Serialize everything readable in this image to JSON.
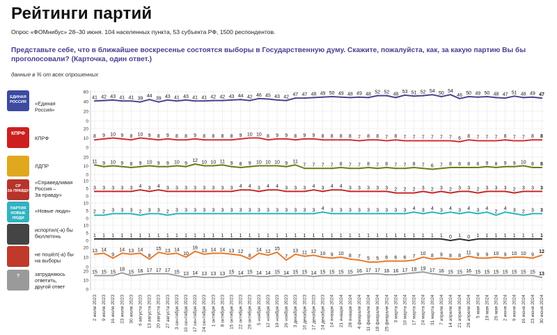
{
  "page": {
    "title": "Рейтинги партий",
    "subtitle": "Опрос «ФОМнибус» 28–30 июня. 104 населенных пункта, 53 субъекта РФ, 1500 респондентов.",
    "question": "Представьте себе, что в ближайшее воскресенье состоятся выборы в Государственную думу. Скажите, пожалуйста, как, за какую партию Вы бы проголосовали? (Карточка, один ответ.)",
    "note": "данные в % от всех опрошенных"
  },
  "chart_data": {
    "type": "line",
    "y_ticks": [
      [
        "60",
        "40",
        "20",
        "0"
      ],
      [
        "20",
        "10",
        "0"
      ],
      [
        "20",
        "10",
        "0"
      ],
      [
        "10",
        "5",
        "0"
      ],
      [
        "10",
        "5",
        "0"
      ],
      [
        "10",
        "5",
        "0"
      ],
      [
        "20",
        "10",
        "0"
      ],
      [
        "20",
        "10",
        "0"
      ]
    ],
    "x": [
      "2 июля 2023",
      "9 июля 2023",
      "16 июля 2023",
      "23 июля 2023",
      "30 июля 2023",
      "6 августа 2023",
      "13 августа 2023",
      "20 августа 2023",
      "27 августа 2023",
      "3 сентября 2023",
      "10 сентября 2023",
      "17 сентября 2023",
      "24 сентября 2023",
      "1 октября 2023",
      "8 октября 2023",
      "15 октября 2023",
      "22 октября 2023",
      "29 октября 2023",
      "5 ноября 2023",
      "12 ноября 2023",
      "19 ноября 2023",
      "26 ноября 2023",
      "3 декабря 2023",
      "10 декабря 2023",
      "17 декабря 2023",
      "24 декабря 2023",
      "14 января 2024",
      "21 января 2024",
      "28 января 2024",
      "4 февраля 2024",
      "11 февраля 2024",
      "18 февраля 2024",
      "25 февраля 2024",
      "3 марта 2024",
      "10 марта 2024",
      "17 марта 2024",
      "24 марта 2024",
      "31 марта 2024",
      "7 апреля 2024",
      "14 апреля 2024",
      "21 апреля 2024",
      "28 апреля 2024",
      "5 мая 2024",
      "19 мая 2024",
      "26 мая 2024",
      "2 июня 2024",
      "9 июня 2024",
      "16 июня 2024",
      "23 июня 2024",
      "30 июня 2024"
    ],
    "series": [
      {
        "name": "«Единая Россия»",
        "color": "#4b4490",
        "ymax": 60,
        "values": [
          41,
          42,
          43,
          41,
          41,
          39,
          44,
          39,
          43,
          41,
          43,
          41,
          41,
          42,
          42,
          43,
          44,
          42,
          46,
          45,
          43,
          42,
          47,
          47,
          48,
          49,
          50,
          49,
          48,
          49,
          48,
          52,
          52,
          48,
          53,
          51,
          52,
          54,
          50,
          54,
          46,
          50,
          49,
          50,
          48,
          47,
          51,
          48,
          49,
          47
        ]
      },
      {
        "name": "КПРФ",
        "color": "#d32f2f",
        "ymax": 20,
        "values": [
          8,
          9,
          10,
          9,
          8,
          10,
          9,
          8,
          9,
          8,
          8,
          9,
          8,
          8,
          8,
          8,
          9,
          10,
          10,
          8,
          9,
          9,
          8,
          9,
          9,
          8,
          8,
          8,
          8,
          7,
          8,
          8,
          7,
          8,
          7,
          7,
          7,
          7,
          7,
          7,
          6,
          8,
          7,
          7,
          7,
          8,
          7,
          7,
          8,
          8
        ]
      },
      {
        "name": "ЛДПР",
        "color": "#6b7d16",
        "ymax": 20,
        "values": [
          11,
          9,
          10,
          9,
          8,
          9,
          10,
          9,
          9,
          10,
          9,
          12,
          10,
          10,
          11,
          9,
          8,
          9,
          10,
          10,
          10,
          9,
          11,
          7,
          7,
          7,
          7,
          8,
          7,
          7,
          8,
          7,
          8,
          7,
          7,
          8,
          7,
          6,
          7,
          8,
          8,
          8,
          8,
          9,
          8,
          9,
          9,
          10,
          8,
          8
        ]
      },
      {
        "name": "«Справедливая Россия – За правду»",
        "color": "#c62828",
        "ymax": 10,
        "values": [
          3,
          3,
          3,
          3,
          3,
          4,
          3,
          4,
          3,
          3,
          3,
          3,
          3,
          3,
          3,
          3,
          4,
          4,
          3,
          4,
          4,
          3,
          3,
          3,
          4,
          3,
          4,
          4,
          3,
          3,
          3,
          3,
          3,
          2,
          2,
          2,
          3,
          2,
          3,
          2,
          3,
          3,
          2,
          3,
          3,
          3,
          2,
          3,
          3,
          3
        ]
      },
      {
        "name": "«Новые люди»",
        "color": "#2bb3c0",
        "ymax": 10,
        "values": [
          2,
          2,
          3,
          3,
          3,
          2,
          3,
          3,
          2,
          3,
          3,
          3,
          3,
          3,
          3,
          3,
          3,
          3,
          3,
          3,
          3,
          3,
          3,
          3,
          3,
          4,
          3,
          3,
          3,
          3,
          3,
          3,
          3,
          3,
          3,
          4,
          3,
          4,
          3,
          4,
          3,
          4,
          3,
          4,
          2,
          4,
          3,
          2,
          3,
          3
        ]
      },
      {
        "name": "испортил(-а) бы бюллетень",
        "color": "#2b2b2b",
        "ymax": 10,
        "values": [
          1,
          1,
          1,
          1,
          1,
          1,
          1,
          1,
          1,
          1,
          1,
          1,
          1,
          1,
          1,
          1,
          1,
          1,
          1,
          1,
          1,
          1,
          1,
          1,
          1,
          1,
          1,
          1,
          1,
          1,
          1,
          1,
          1,
          1,
          1,
          1,
          1,
          1,
          1,
          0,
          1,
          0,
          1,
          1,
          1,
          1,
          1,
          1,
          1,
          1
        ]
      },
      {
        "name": "не пошёл(-а) бы на выборы",
        "color": "#e87a2a",
        "ymax": 20,
        "values": [
          13,
          14,
          9,
          14,
          13,
          14,
          8,
          15,
          13,
          14,
          10,
          16,
          13,
          14,
          14,
          13,
          12,
          8,
          14,
          12,
          15,
          7,
          13,
          11,
          12,
          10,
          9,
          10,
          8,
          7,
          5,
          5,
          6,
          6,
          6,
          7,
          10,
          8,
          9,
          8,
          8,
          11,
          9,
          9,
          10,
          9,
          10,
          10,
          9,
          12
        ]
      },
      {
        "name": "затрудняюсь ответить, другой ответ",
        "color": "#9e9e9e",
        "ymax": 20,
        "values": [
          15,
          15,
          15,
          18,
          15,
          16,
          17,
          17,
          17,
          15,
          13,
          14,
          13,
          13,
          13,
          15,
          14,
          15,
          14,
          14,
          15,
          14,
          15,
          15,
          14,
          15,
          15,
          15,
          15,
          16,
          17,
          17,
          16,
          16,
          17,
          18,
          19,
          17,
          16,
          15,
          15,
          16,
          15,
          15,
          15,
          15,
          15,
          15,
          15,
          13
        ]
      }
    ],
    "labels": {
      "row_1": [
        "«Единая",
        "Россия»"
      ],
      "row_2": [
        "КПРФ"
      ],
      "row_3": [
        "ЛДПР"
      ],
      "row_4": [
        "«Справедливая",
        "Россия –",
        "За правду»"
      ],
      "row_5": [
        "«Новые люди»"
      ],
      "row_6": [
        "испортил(-а) бы",
        "бюллетень"
      ],
      "row_7": [
        "не пошёл(-а) бы",
        "на выборы"
      ],
      "row_8": [
        "затрудняюсь",
        "ответить,",
        "другой ответ"
      ]
    },
    "logo_text": {
      "row_1": [
        "ЕДИНАЯ",
        "РОССИЯ"
      ],
      "row_2": [
        "КПРФ"
      ],
      "row_3": [],
      "row_4": [
        "СР",
        "ЗА ПРАВДУ"
      ],
      "row_5": [
        "ПАРТИЯ",
        "НОВЫЕ",
        "ЛЮДИ"
      ],
      "row_6": [],
      "row_7": [],
      "row_8": [
        "?"
      ]
    },
    "grid": true
  }
}
